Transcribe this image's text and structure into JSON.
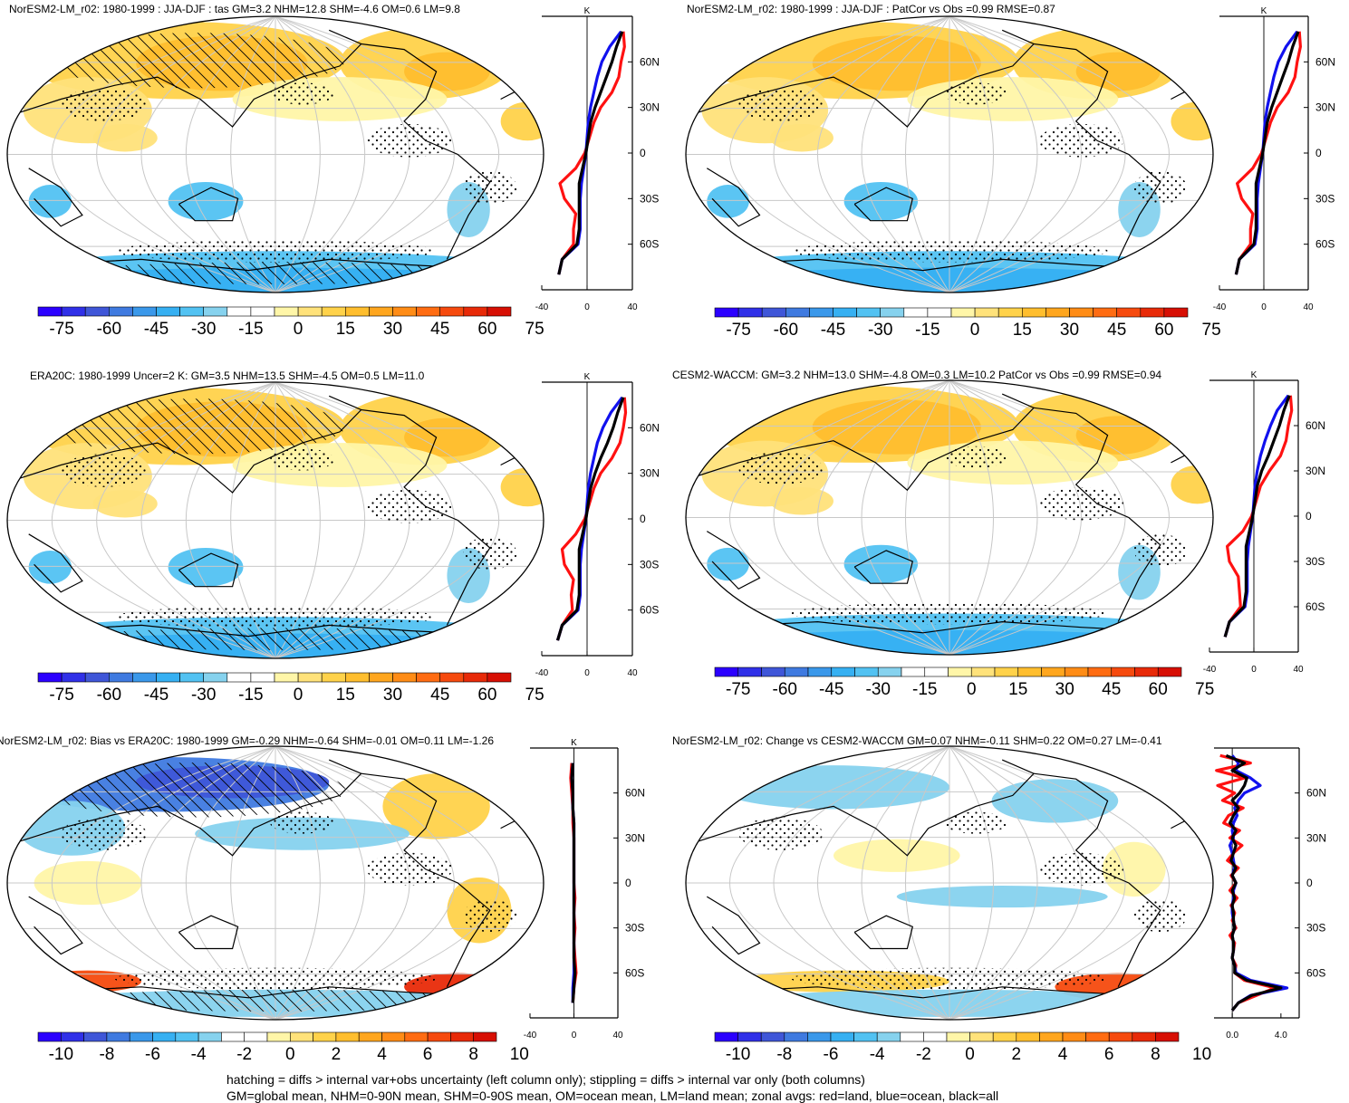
{
  "chart_data": [
    {
      "type": "heatmap",
      "title": "NorESM2-LM_r02: 1980-1999 : JJA-DJF : tas GM=3.2 NHM=12.8 SHM=-4.6 OM=0.6 LM=9.8",
      "colorbar": {
        "ticks": [
          "-75",
          "-60",
          "-45",
          "-30",
          "-15",
          "0",
          "15",
          "30",
          "45",
          "60",
          "75"
        ],
        "range": [
          -80,
          80
        ]
      },
      "hatching": true,
      "stippling": true,
      "zonal": {
        "unit": "K",
        "xticks": [
          "-40",
          "0",
          "40"
        ],
        "xlim": [
          -40,
          40
        ],
        "yticks": [
          "60N",
          "30N",
          "0",
          "30S",
          "60S"
        ],
        "lat": [
          80,
          70,
          60,
          50,
          40,
          30,
          20,
          10,
          0,
          -10,
          -20,
          -30,
          -40,
          -50,
          -60,
          -70,
          -80
        ],
        "land": [
          32,
          33,
          30,
          28,
          22,
          12,
          6,
          2,
          -2,
          -10,
          -24,
          -20,
          -10,
          -12,
          -12,
          -22,
          -25
        ],
        "ocean": [
          30,
          20,
          13,
          9,
          6,
          3,
          1,
          0,
          -1,
          -3,
          -5,
          -6,
          -6,
          -6,
          -8,
          -22,
          -25
        ],
        "all": [
          31,
          26,
          22,
          17,
          12,
          7,
          3,
          1,
          -1,
          -4,
          -7,
          -7,
          -7,
          -7,
          -9,
          -22,
          -25
        ]
      }
    },
    {
      "type": "heatmap",
      "title": "NorESM2-LM_r02: 1980-1999 : JJA-DJF : PatCor vs Obs =0.99 RMSE=0.87",
      "colorbar": {
        "ticks": [
          "-75",
          "-60",
          "-45",
          "-30",
          "-15",
          "0",
          "15",
          "30",
          "45",
          "60",
          "75"
        ],
        "range": [
          -80,
          80
        ]
      },
      "hatching": false,
      "stippling": true,
      "zonal": {
        "unit": "K",
        "xticks": [
          "-40",
          "0",
          "40"
        ],
        "xlim": [
          -40,
          40
        ],
        "yticks": [
          "60N",
          "30N",
          "0",
          "30S",
          "60S"
        ],
        "lat": [
          80,
          70,
          60,
          50,
          40,
          30,
          20,
          10,
          0,
          -10,
          -20,
          -30,
          -40,
          -50,
          -60,
          -70,
          -80
        ],
        "land": [
          32,
          33,
          30,
          28,
          22,
          12,
          6,
          2,
          -2,
          -10,
          -24,
          -20,
          -10,
          -12,
          -12,
          -22,
          -25
        ],
        "ocean": [
          30,
          20,
          13,
          9,
          6,
          3,
          1,
          0,
          -1,
          -3,
          -5,
          -6,
          -6,
          -6,
          -8,
          -22,
          -25
        ],
        "all": [
          31,
          26,
          22,
          17,
          12,
          7,
          3,
          1,
          -1,
          -4,
          -7,
          -7,
          -7,
          -7,
          -9,
          -22,
          -25
        ]
      }
    },
    {
      "type": "heatmap",
      "title": "ERA20C: 1980-1999 Uncer=2 K: GM=3.5 NHM=13.5 SHM=-4.5 OM=0.5 LM=11.0",
      "colorbar": {
        "ticks": [
          "-75",
          "-60",
          "-45",
          "-30",
          "-15",
          "0",
          "15",
          "30",
          "45",
          "60",
          "75"
        ],
        "range": [
          -80,
          80
        ]
      },
      "hatching": true,
      "stippling": true,
      "zonal": {
        "unit": "K",
        "xticks": [
          "-40",
          "0",
          "40"
        ],
        "xlim": [
          -40,
          40
        ],
        "yticks": [
          "60N",
          "30N",
          "0",
          "30S",
          "60S"
        ],
        "lat": [
          80,
          70,
          60,
          50,
          40,
          30,
          20,
          10,
          0,
          -10,
          -20,
          -30,
          -40,
          -50,
          -60,
          -70,
          -80
        ],
        "land": [
          33,
          34,
          32,
          29,
          22,
          12,
          6,
          2,
          -2,
          -10,
          -22,
          -20,
          -12,
          -14,
          -13,
          -22,
          -26
        ],
        "ocean": [
          31,
          21,
          14,
          9,
          6,
          3,
          1,
          0,
          -1,
          -3,
          -5,
          -6,
          -6,
          -6,
          -8,
          -22,
          -26
        ],
        "all": [
          32,
          27,
          23,
          18,
          12,
          7,
          3,
          1,
          -1,
          -4,
          -7,
          -7,
          -7,
          -7,
          -9,
          -22,
          -26
        ]
      }
    },
    {
      "type": "heatmap",
      "title": "CESM2-WACCM: GM=3.2 NHM=13.0 SHM=-4.8 OM=0.3 LM=10.2 PatCor vs Obs =0.99 RMSE=0.94",
      "colorbar": {
        "ticks": [
          "-75",
          "-60",
          "-45",
          "-30",
          "-15",
          "0",
          "15",
          "30",
          "45",
          "60",
          "75"
        ],
        "range": [
          -80,
          80
        ]
      },
      "hatching": false,
      "stippling": true,
      "zonal": {
        "unit": "K",
        "xticks": [
          "-40",
          "0",
          "40"
        ],
        "xlim": [
          -40,
          40
        ],
        "yticks": [
          "60N",
          "30N",
          "0",
          "30S",
          "60S"
        ],
        "lat": [
          80,
          70,
          60,
          50,
          40,
          30,
          20,
          10,
          0,
          -10,
          -20,
          -30,
          -40,
          -50,
          -60,
          -70,
          -80
        ],
        "land": [
          33,
          34,
          31,
          29,
          24,
          14,
          6,
          2,
          -2,
          -10,
          -24,
          -22,
          -14,
          -13,
          -12,
          -22,
          -26
        ],
        "ocean": [
          31,
          21,
          15,
          10,
          6,
          3,
          1,
          0,
          -1,
          -3,
          -5,
          -6,
          -6,
          -6,
          -8,
          -22,
          -26
        ],
        "all": [
          32,
          27,
          23,
          18,
          13,
          7,
          3,
          1,
          -1,
          -4,
          -7,
          -7,
          -7,
          -7,
          -9,
          -22,
          -26
        ]
      }
    },
    {
      "type": "heatmap",
      "title": "NorESM2-LM_r02: Bias vs ERA20C: 1980-1999 GM=-0.29 NHM=-0.64 SHM=-0.01 OM=0.11 LM=-1.26",
      "colorbar": {
        "ticks": [
          "-10",
          "-8",
          "-6",
          "-4",
          "-2",
          "0",
          "2",
          "4",
          "6",
          "8",
          "10"
        ],
        "range": [
          -11,
          11
        ]
      },
      "hatching": true,
      "stippling": true,
      "zonal": {
        "unit": "K",
        "xticks": [
          "-40",
          "0",
          "40"
        ],
        "xlim": [
          -40,
          40
        ],
        "yticks": [
          "60N",
          "30N",
          "0",
          "30S",
          "60S"
        ],
        "lat": [
          80,
          70,
          60,
          50,
          40,
          30,
          20,
          10,
          0,
          -10,
          -20,
          -30,
          -40,
          -50,
          -60,
          -70,
          -80
        ],
        "land": [
          -2,
          -3,
          -2,
          -1,
          -1,
          0,
          0,
          0,
          0,
          1,
          0,
          1,
          0,
          1,
          2,
          0,
          -1
        ],
        "ocean": [
          -1,
          -2,
          -1,
          -1,
          0,
          0,
          0,
          0,
          0,
          0,
          0,
          0,
          0,
          0,
          0,
          -1,
          -1
        ],
        "all": [
          -1,
          -2,
          -1,
          -1,
          0,
          0,
          0,
          0,
          0,
          0,
          0,
          0,
          0,
          0,
          1,
          0,
          -1
        ]
      }
    },
    {
      "type": "heatmap",
      "title": "NorESM2-LM_r02: Change vs CESM2-WACCM GM=0.07 NHM=-0.11 SHM=0.22 OM=0.27 LM=-0.41",
      "colorbar": {
        "ticks": [
          "-10",
          "-8",
          "-6",
          "-4",
          "-2",
          "0",
          "2",
          "4",
          "6",
          "8",
          "10"
        ],
        "range": [
          -11,
          11
        ]
      },
      "hatching": false,
      "stippling": true,
      "zonal": {
        "unit": "",
        "xticks": [
          "0.0",
          "4.0"
        ],
        "xlim": [
          -1.5,
          5.5
        ],
        "yticks": [
          "60N",
          "30N",
          "0",
          "30S",
          "60S"
        ],
        "lat": [
          85,
          80,
          75,
          70,
          65,
          60,
          55,
          50,
          45,
          40,
          35,
          30,
          25,
          20,
          15,
          10,
          5,
          0,
          -5,
          -10,
          -15,
          -20,
          -25,
          -30,
          -35,
          -40,
          -45,
          -50,
          -55,
          -60,
          -65,
          -70,
          -75,
          -80,
          -85
        ],
        "land": [
          -1.0,
          1.5,
          -1.3,
          1.0,
          -1.2,
          0.2,
          -0.8,
          0.9,
          -0.3,
          -0.7,
          0.6,
          -0.2,
          0.8,
          0.1,
          -0.4,
          0.5,
          -0.1,
          0.3,
          -0.2,
          0.4,
          -0.1,
          0.2,
          0.0,
          0.3,
          -0.2,
          0.2,
          0.1,
          0.0,
          0.3,
          0.2,
          1.0,
          3.5,
          2.0,
          0.5,
          0.0
        ],
        "ocean": [
          0.0,
          0.5,
          0.3,
          1.5,
          2.3,
          1.0,
          0.5,
          0.2,
          0.4,
          0.1,
          0.0,
          0.1,
          -0.2,
          0.0,
          0.1,
          0.2,
          0.0,
          0.3,
          0.1,
          0.1,
          0.0,
          0.0,
          0.1,
          0.2,
          0.0,
          0.1,
          0.1,
          0.0,
          0.2,
          0.3,
          1.5,
          4.5,
          1.5,
          0.5,
          0.0
        ],
        "all": [
          -0.5,
          1.0,
          0.0,
          1.2,
          1.0,
          0.6,
          0.0,
          0.5,
          0.1,
          -0.2,
          0.3,
          0.0,
          0.3,
          0.1,
          -0.1,
          0.3,
          0.0,
          0.3,
          0.0,
          0.2,
          0.0,
          0.1,
          0.1,
          0.2,
          0.0,
          0.1,
          0.1,
          0.0,
          0.2,
          0.2,
          1.2,
          4.0,
          1.6,
          0.5,
          0.0
        ]
      }
    }
  ],
  "legend_colors": {
    "land": "#ff1111",
    "ocean": "#1111ee",
    "all": "#000000"
  },
  "footnote": {
    "line1": "hatching = diffs > internal var+obs uncertainty (left column only); stippling = diffs > internal var only (both columns)",
    "line2": "GM=global mean, NHM=0-90N mean, SHM=0-90S mean, OM=ocean mean, LM=land mean; zonal avgs: red=land, blue=ocean, black=all"
  }
}
